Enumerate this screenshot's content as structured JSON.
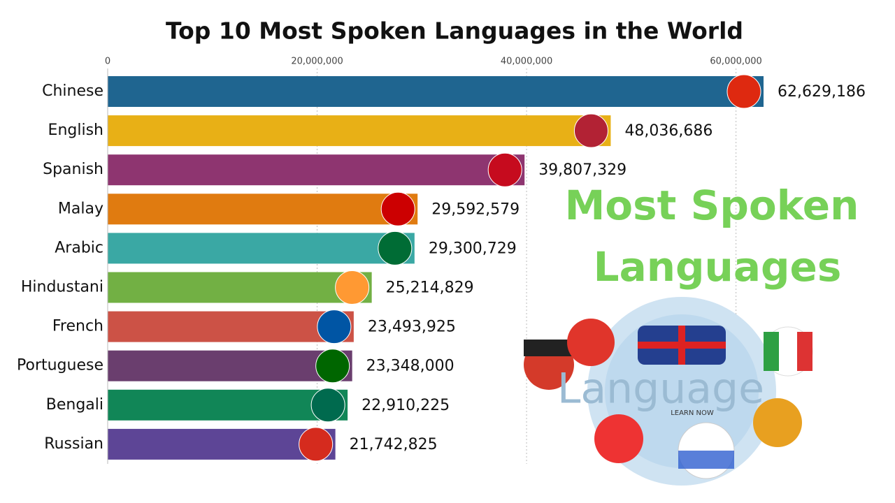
{
  "chart_data": {
    "type": "bar",
    "orientation": "horizontal",
    "title": "Top 10 Most Spoken Languages in the World",
    "categories": [
      "Chinese",
      "English",
      "Spanish",
      "Malay",
      "Arabic",
      "Hindustani",
      "French",
      "Portuguese",
      "Bengali",
      "Russian"
    ],
    "values": [
      62629186,
      48036686,
      39807329,
      29592579,
      29300729,
      25214829,
      23493925,
      23348000,
      22910225,
      21742825
    ],
    "value_labels": [
      "62,629,186",
      "48,036,686",
      "39,807,329",
      "29,592,579",
      "29,300,729",
      "25,214,829",
      "23,493,925",
      "23,348,000",
      "22,910,225",
      "21,742,825"
    ],
    "colors": [
      "#1f6590",
      "#e8b016",
      "#8e3570",
      "#e07b10",
      "#3aa8a4",
      "#72b044",
      "#cc5246",
      "#6a3e6e",
      "#118657",
      "#5d4596"
    ],
    "xlim": [
      0,
      62629186
    ],
    "xticks": [
      0,
      {
        "value": 20000000,
        "label": "20,000,000"
      },
      {
        "value": 40000000,
        "label": "40,000,000"
      },
      {
        "value": 60000000,
        "label": "60,000,000"
      }
    ],
    "grid": true,
    "annotations": [
      "Most Spoken",
      "Languages"
    ],
    "image_texts": [
      "Language",
      "LEARN NOW"
    ]
  }
}
